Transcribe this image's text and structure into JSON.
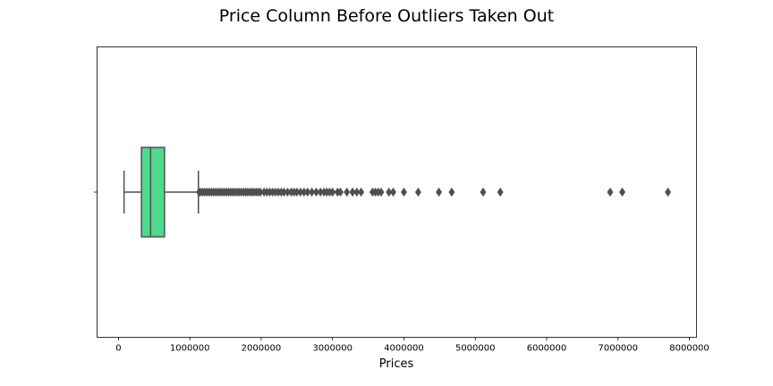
{
  "chart_data": {
    "type": "boxplot",
    "title": "Price Column Before Outliers Taken Out",
    "xlabel": "Prices",
    "ylabel": "",
    "orientation": "horizontal",
    "xlim": [
      -300000,
      8100000
    ],
    "x_ticks": [
      0,
      1000000,
      2000000,
      3000000,
      4000000,
      5000000,
      6000000,
      7000000,
      8000000
    ],
    "x_tick_labels": [
      "0",
      "1000000",
      "2000000",
      "3000000",
      "4000000",
      "5000000",
      "6000000",
      "7000000",
      "8000000"
    ],
    "grid": false,
    "legend": "none",
    "box": {
      "whisker_low": 78000,
      "q1": 322000,
      "median": 450000,
      "q3": 645000,
      "whisker_high": 1120000
    },
    "outliers": [
      1130000,
      1150000,
      1180000,
      1210000,
      1240000,
      1270000,
      1300000,
      1330000,
      1360000,
      1390000,
      1420000,
      1450000,
      1480000,
      1510000,
      1540000,
      1570000,
      1600000,
      1630000,
      1660000,
      1690000,
      1720000,
      1750000,
      1780000,
      1810000,
      1840000,
      1870000,
      1900000,
      1930000,
      1960000,
      1990000,
      2040000,
      2080000,
      2120000,
      2160000,
      2200000,
      2240000,
      2280000,
      2320000,
      2370000,
      2420000,
      2460000,
      2500000,
      2550000,
      2600000,
      2650000,
      2710000,
      2770000,
      2830000,
      2880000,
      2920000,
      2960000,
      3000000,
      3070000,
      3110000,
      3200000,
      3280000,
      3340000,
      3400000,
      3560000,
      3600000,
      3640000,
      3680000,
      3790000,
      3850000,
      4000000,
      4200000,
      4490000,
      4670000,
      5110000,
      5350000,
      6890000,
      7060000,
      7700000
    ],
    "colors": {
      "box_fill": "#4ed98f",
      "box_edge": "#4f4f4f",
      "outlier": "#4f4f4f",
      "frame": "#000000"
    }
  }
}
